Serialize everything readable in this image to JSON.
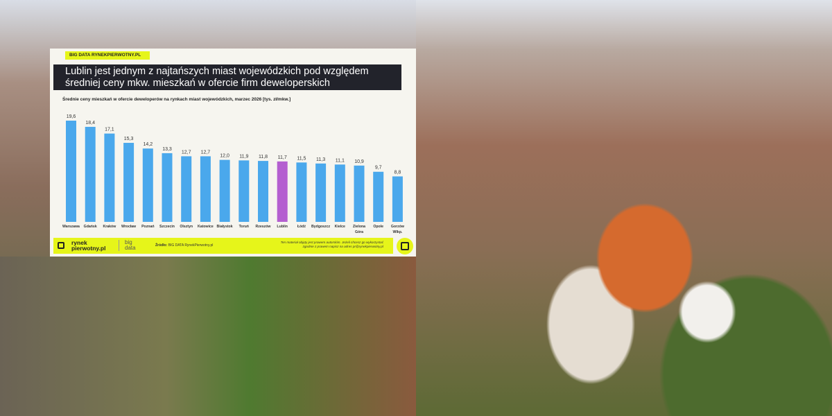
{
  "header": {
    "tag": "BIG DATA RYNEKPIERWOTNY.PL",
    "title_line1": "Lublin jest jednym z najtańszych miast wojewódzkich pod względem",
    "title_line2": "średniej ceny mkw. mieszkań w ofercie firm deweloperskich"
  },
  "chart_data": {
    "type": "bar",
    "title": "Średnie ceny mieszkań w ofercie deweloperów na rynkach miast wojewódzkich, marzec 2026 [tys. zł/mkw.]",
    "categories": [
      "Warszawa",
      "Gdańsk",
      "Kraków",
      "Wrocław",
      "Poznań",
      "Szczecin",
      "Olsztyn",
      "Katowice",
      "Białystok",
      "Toruń",
      "Rzeszów",
      "Lublin",
      "Łódź",
      "Bydgoszcz",
      "Kielce",
      "Zielona Góra",
      "Opole",
      "Gorzów Wlkp."
    ],
    "values": [
      19.6,
      18.4,
      17.1,
      15.3,
      14.2,
      13.3,
      12.7,
      12.7,
      12.0,
      11.9,
      11.8,
      11.7,
      11.5,
      11.3,
      11.1,
      10.9,
      9.7,
      8.8
    ],
    "data_labels": [
      "19,6",
      "18,4",
      "17,1",
      "15,3",
      "14,2",
      "13,3",
      "12,7",
      "12,7",
      "12,0",
      "11,9",
      "11,8",
      "11,7",
      "11,5",
      "11,3",
      "11,1",
      "10,9",
      "9,7",
      "8,8"
    ],
    "highlight": "Lublin",
    "colors": {
      "default": "#4aa8ec",
      "highlight": "#b45fd0"
    },
    "ylim": [
      0,
      20
    ],
    "grid": false,
    "legend": "none"
  },
  "footer": {
    "logo_line1": "rynek",
    "logo_line2": "pierwotny.pl",
    "bigdata_line1": "big",
    "bigdata_line2": "data",
    "source_label": "Źródło:",
    "source": "BIG DATA RynekPierwotny.pl",
    "copyright_line1": "Ten materiał objęty jest prawem autorskim. Jeżeli chcesz go wykorzystać",
    "copyright_line2": "zgodnie z prawem napisz na adres pr@rynekpierwotny.pl",
    "accent": "#e6f51a"
  }
}
